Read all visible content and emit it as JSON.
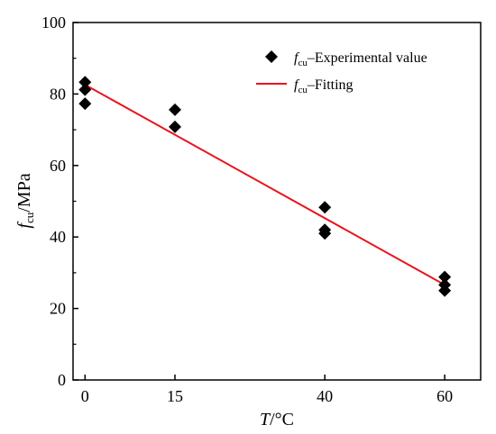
{
  "chart_data": {
    "type": "scatter",
    "x_ticks": [
      "0",
      "15",
      "40",
      "60"
    ],
    "x_tick_values": [
      0,
      15,
      40,
      60
    ],
    "xlim": [
      -2,
      66
    ],
    "y_ticks": [
      "0",
      "20",
      "40",
      "60",
      "80",
      "100"
    ],
    "y_tick_values": [
      0,
      20,
      40,
      60,
      80,
      100
    ],
    "ylim": [
      0,
      100
    ],
    "xlabel": {
      "main": "T",
      "rest": "/°C"
    },
    "ylabel": {
      "main": "f",
      "sub": "cu",
      "rest": "/MPa"
    },
    "legend_position": "top-right",
    "series": [
      {
        "type": "scatter",
        "marker": "diamond",
        "color": "#000000",
        "legend_main": "f",
        "legend_sub": "cu",
        "legend_rest": "–Experimental value",
        "points": [
          [
            0,
            83.3
          ],
          [
            0,
            81.2
          ],
          [
            0,
            77.3
          ],
          [
            15,
            75.6
          ],
          [
            15,
            70.8
          ],
          [
            40,
            48.3
          ],
          [
            40,
            42.0
          ],
          [
            40,
            41.0
          ],
          [
            60,
            28.8
          ],
          [
            60,
            26.6
          ],
          [
            60,
            25.0
          ]
        ]
      },
      {
        "type": "line",
        "color": "#e8141e",
        "legend_main": "f",
        "legend_sub": "cu",
        "legend_rest": "–Fitting",
        "points": [
          [
            0,
            82.6
          ],
          [
            60,
            26.6
          ]
        ]
      }
    ]
  }
}
